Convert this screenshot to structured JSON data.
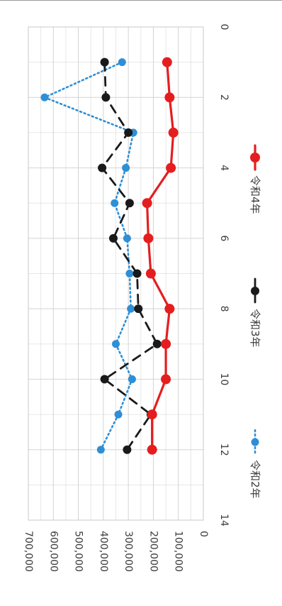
{
  "chart_data": {
    "type": "line",
    "orientation": "rotated 90° clockwise",
    "title": "",
    "xlabel": "",
    "ylabel": "",
    "xlim": [
      0,
      14
    ],
    "ylim": [
      0,
      700000
    ],
    "x_ticks": [
      "0",
      "2",
      "4",
      "6",
      "8",
      "10",
      "12",
      "14"
    ],
    "y_ticks": [
      "0",
      "100,000",
      "200,000",
      "300,000",
      "400,000",
      "500,000",
      "600,000",
      "700,000"
    ],
    "grid": true,
    "legend_position": "bottom",
    "x": [
      1,
      2,
      3,
      4,
      5,
      6,
      7,
      8,
      9,
      10,
      11,
      12
    ],
    "series": [
      {
        "name": "令和2年",
        "color": "#2e8fd6",
        "style": "dotted",
        "marker": "circle",
        "values": [
          325000,
          635000,
          280000,
          310000,
          355000,
          305000,
          295000,
          290000,
          350000,
          285000,
          340000,
          410000
        ]
      },
      {
        "name": "令和3年",
        "color": "#1a1a1a",
        "style": "dashed",
        "marker": "circle",
        "values": [
          395000,
          390000,
          300000,
          405000,
          295000,
          360000,
          265000,
          260000,
          185000,
          395000,
          210000,
          305000
        ]
      },
      {
        "name": "令和4年",
        "color": "#e41e1e",
        "style": "solid",
        "marker": "circle",
        "values": [
          145000,
          135000,
          120000,
          130000,
          225000,
          220000,
          210000,
          135000,
          150000,
          150000,
          205000,
          205000
        ]
      }
    ]
  }
}
